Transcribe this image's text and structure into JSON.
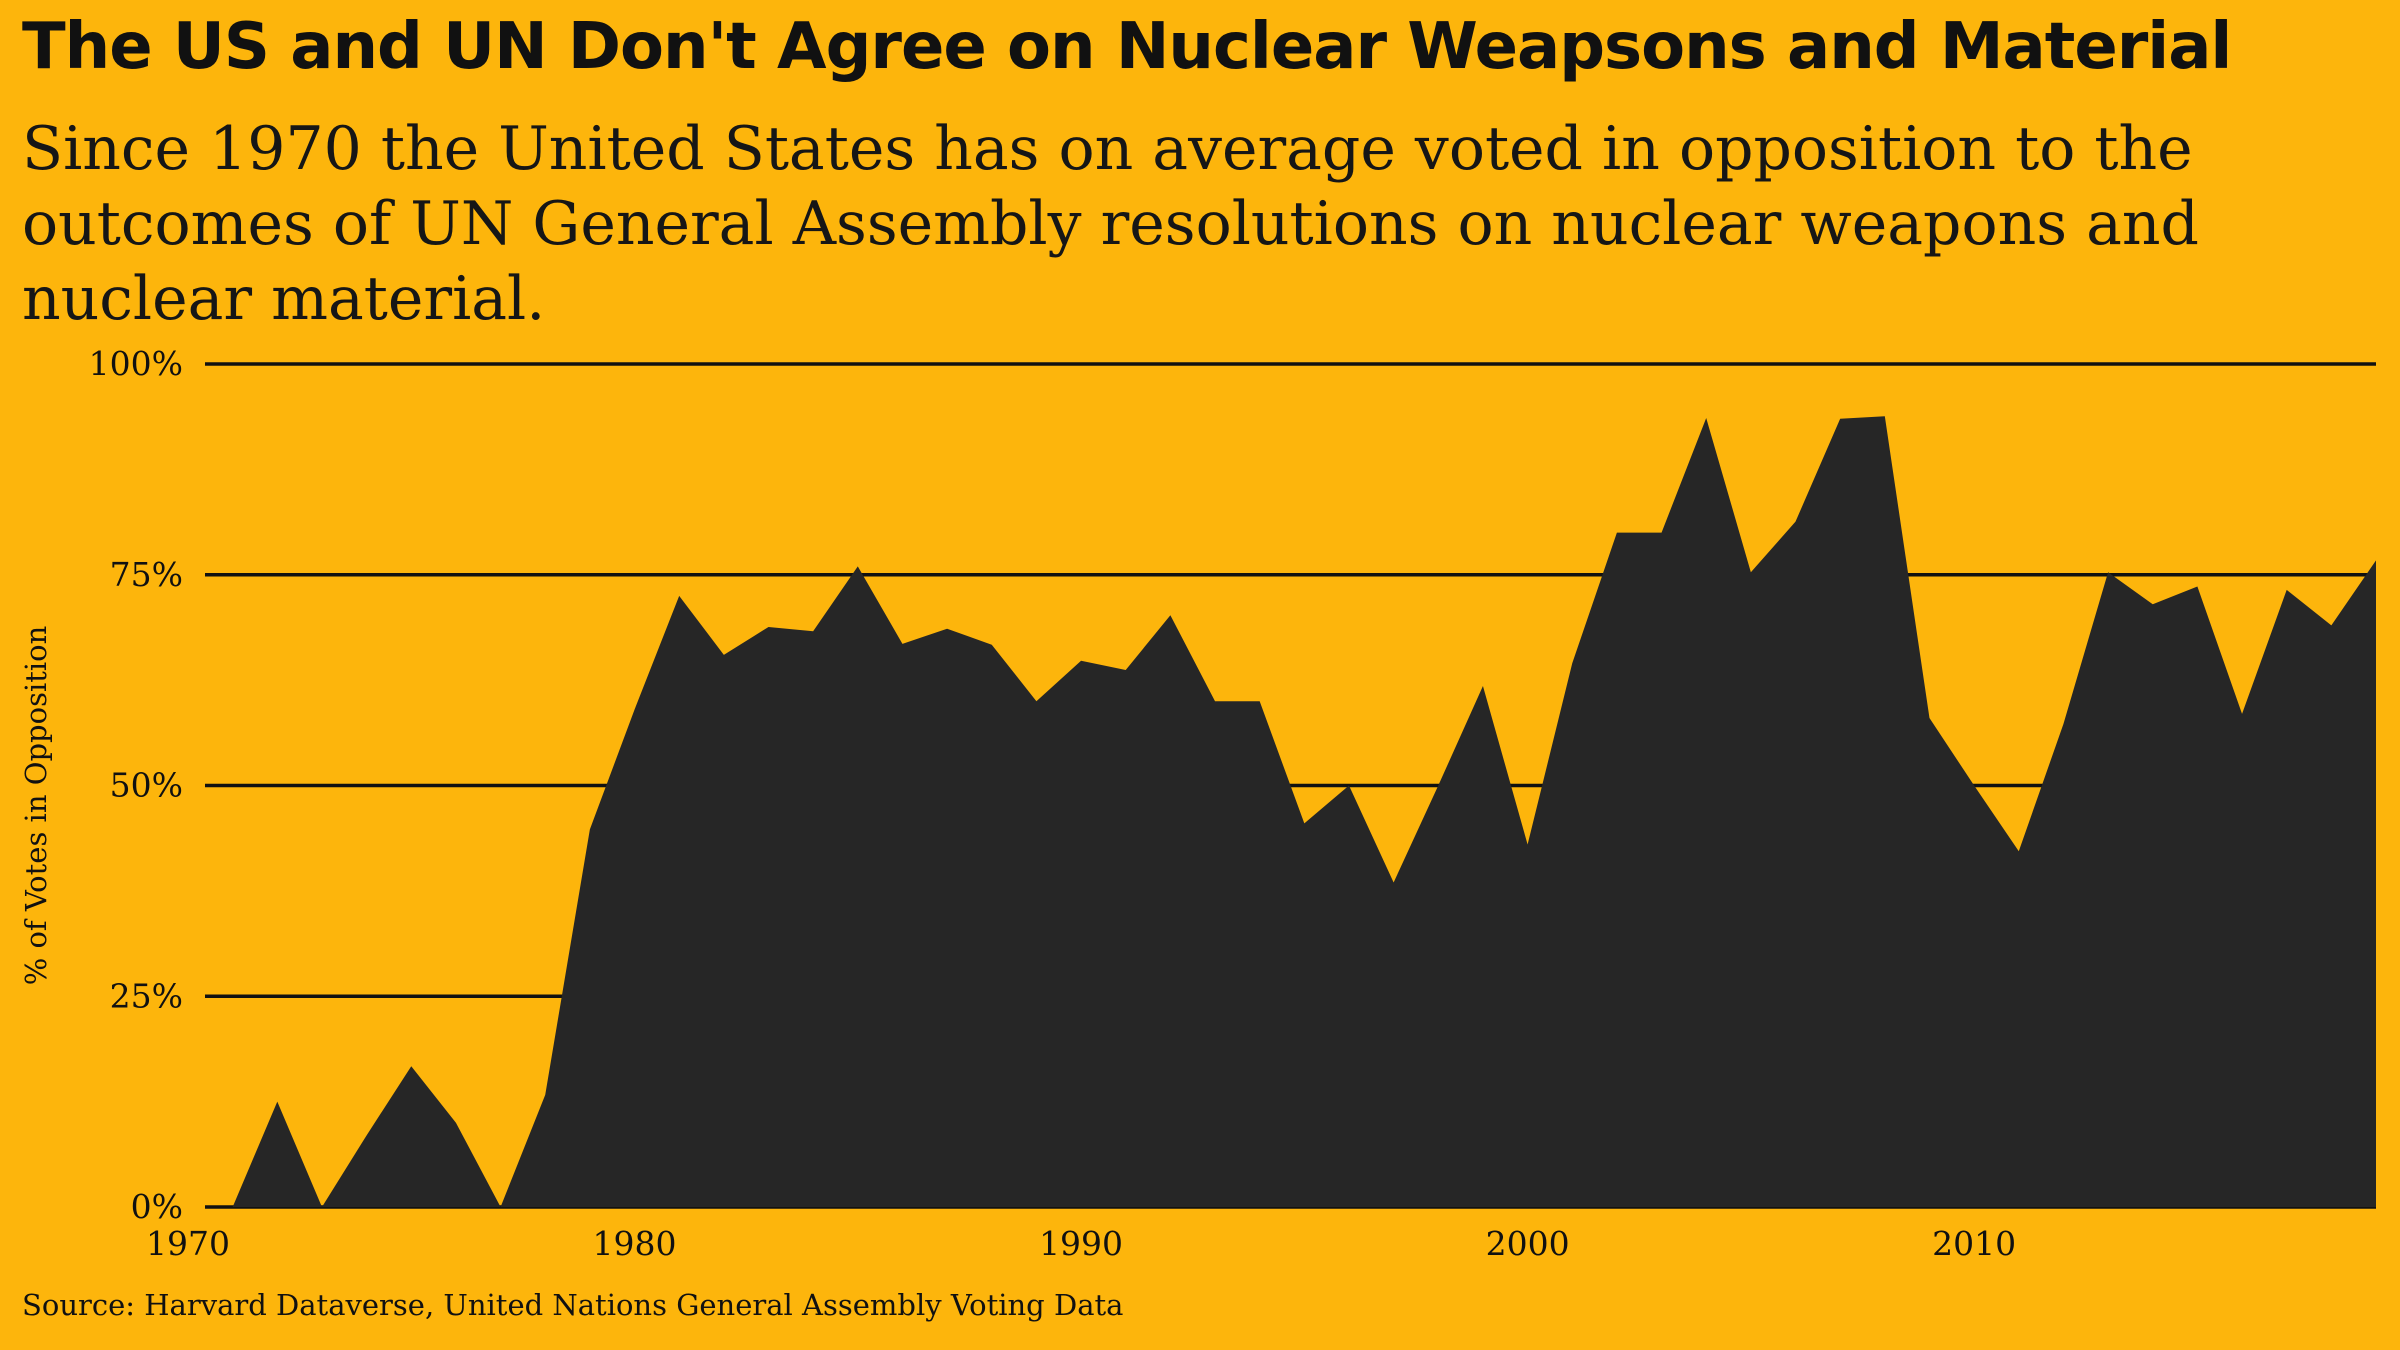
{
  "chart_data": {
    "type": "area",
    "title": "The US and UN Don't Agree on Nuclear Weapsons and Material",
    "subtitle": "Since 1970 the United States has on average voted in opposition to the outcomes of UN General Assembly resolutions on nuclear weapons and nuclear material.",
    "ylabel": "% of Votes in Opposition",
    "xlabel": "",
    "source": "Source: Harvard Dataverse, United Nations General Assembly Voting Data",
    "xlim": [
      1970,
      2019
    ],
    "ylim": [
      0,
      100
    ],
    "x_ticks": [
      {
        "value": 1970,
        "label": "1970"
      },
      {
        "value": 1980,
        "label": "1980"
      },
      {
        "value": 1990,
        "label": "1990"
      },
      {
        "value": 2000,
        "label": "2000"
      },
      {
        "value": 2010,
        "label": "2010"
      }
    ],
    "y_ticks": [
      {
        "value": 0,
        "label": "0%"
      },
      {
        "value": 25,
        "label": "25%"
      },
      {
        "value": 50,
        "label": "50%"
      },
      {
        "value": 75,
        "label": "75%"
      },
      {
        "value": 100,
        "label": "100%"
      }
    ],
    "grid": "horizontal",
    "series": [
      {
        "color": "#262626",
        "x": [
          1971,
          1972,
          1973,
          1974,
          1975,
          1976,
          1977,
          1978,
          1979,
          1980,
          1981,
          1982,
          1983,
          1984,
          1985,
          1986,
          1987,
          1988,
          1989,
          1990,
          1991,
          1992,
          1993,
          1994,
          1995,
          1996,
          1997,
          1998,
          1999,
          2000,
          2001,
          2002,
          2003,
          2004,
          2005,
          2006,
          2007,
          2008,
          2009,
          2010,
          2011,
          2012,
          2013,
          2014,
          2015,
          2016,
          2017,
          2018,
          2019
        ],
        "values": [
          0,
          12.5,
          0,
          8.5,
          16.7,
          10,
          0,
          13.3,
          44.8,
          59,
          72.5,
          65.5,
          68.8,
          68.3,
          76,
          66.8,
          68.6,
          66.7,
          60,
          64.8,
          63.7,
          70.2,
          60,
          60,
          45.5,
          50,
          38.5,
          50,
          61.8,
          43,
          64.5,
          80,
          80,
          93.6,
          75.3,
          81.3,
          93.5,
          93.8,
          58,
          50,
          42.2,
          57.3,
          75.3,
          71.5,
          73.6,
          58.5,
          73.2,
          69,
          76.7
        ]
      }
    ],
    "colors": {
      "background": "#fdb50c",
      "area": "#262626",
      "grid": "#111111"
    }
  }
}
